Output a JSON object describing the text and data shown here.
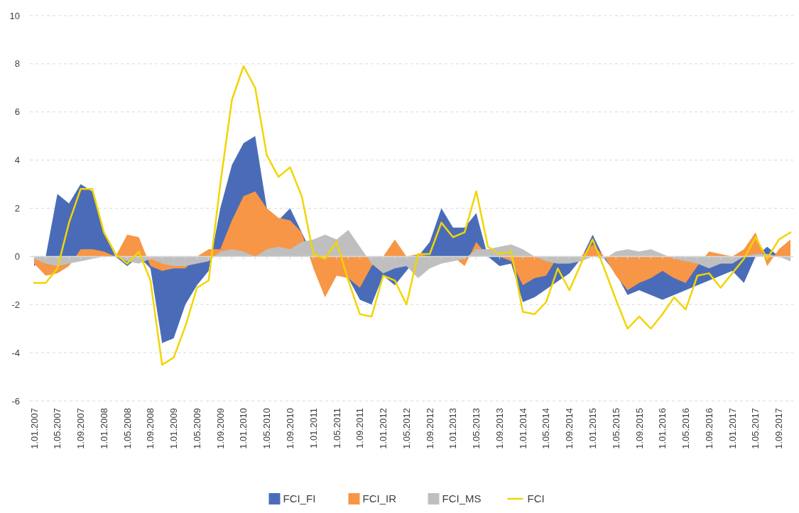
{
  "chart_data": {
    "type": "area",
    "categories": [
      "1.01.2007",
      null,
      "1.05.2007",
      null,
      "1.09.2007",
      null,
      "1.01.2008",
      null,
      "1.05.2008",
      null,
      "1.09.2008",
      null,
      "1.01.2009",
      null,
      "1.05.2009",
      null,
      "1.09.2009",
      null,
      "1.01.2010",
      null,
      "1.05.2010",
      null,
      "1.09.2010",
      null,
      "1.01.2011",
      null,
      "1.05.2011",
      null,
      "1.09.2011",
      null,
      "1.01.2012",
      null,
      "1.05.2012",
      null,
      "1.09.2012",
      null,
      "1.01.2013",
      null,
      "1.05.2013",
      null,
      "1.09.2013",
      null,
      "1.01.2014",
      null,
      "1.05.2014",
      null,
      "1.09.2014",
      null,
      "1.01.2015",
      null,
      "1.05.2015",
      null,
      "1.09.2015",
      null,
      "1.01.2016",
      null,
      "1.05.2016",
      null,
      "1.09.2016",
      null,
      "1.01.2017",
      null,
      "1.05.2017",
      null,
      "1.09.2017",
      null
    ],
    "series": [
      {
        "name": "FCI_FI",
        "color": "#4a6cb8",
        "values": [
          -0.4,
          0.0,
          2.6,
          2.2,
          3.0,
          2.7,
          1.0,
          0.0,
          -0.4,
          0.0,
          -0.5,
          -3.6,
          -3.4,
          -2.0,
          -1.2,
          -0.6,
          2.0,
          3.8,
          4.7,
          5.0,
          2.0,
          1.5,
          2.0,
          null,
          0.0,
          0.0,
          0.0,
          null,
          -1.8,
          -2.0,
          -0.8,
          -1.2,
          -0.6,
          0.0,
          0.6,
          2.0,
          1.2,
          1.2,
          1.8,
          0.0,
          -0.4,
          -0.3,
          -1.9,
          -1.7,
          null,
          null,
          -0.7,
          -0.1,
          0.9,
          -0.1,
          -0.7,
          -1.6,
          -1.4,
          -1.6,
          -1.8,
          null,
          null,
          null,
          null,
          -0.8,
          -0.6,
          -1.1,
          0.0,
          0.4,
          0.0,
          -0.1
        ]
      },
      {
        "name": "FCI_IR",
        "color": "#f79646",
        "values": [
          -0.3,
          -0.8,
          -0.7,
          -0.4,
          0.3,
          0.3,
          0.2,
          0.0,
          0.9,
          0.8,
          -0.4,
          -0.6,
          -0.5,
          -0.5,
          0.0,
          0.3,
          0.3,
          1.5,
          2.5,
          2.7,
          2.0,
          1.6,
          1.5,
          1.0,
          -0.5,
          -1.7,
          -0.8,
          -0.9,
          -1.3,
          -0.4,
          0.0,
          0.7,
          0.0,
          0.1,
          0.0,
          0.0,
          0.0,
          -0.4,
          0.6,
          0.0,
          0.0,
          -0.2,
          -1.2,
          -0.9,
          -0.8,
          0.0,
          0.0,
          0.0,
          0.5,
          0.0,
          -0.8,
          -1.4,
          -1.1,
          -0.9,
          -0.6,
          -0.9,
          -1.1,
          -0.4,
          0.2,
          0.1,
          0.0,
          0.3,
          1.0,
          -0.4,
          0.3,
          0.7
        ]
      },
      {
        "name": "FCI_MS",
        "color": "#bfbfbf",
        "values": [
          -0.1,
          -0.3,
          -0.4,
          -0.3,
          -0.2,
          -0.1,
          0.0,
          0.0,
          -0.2,
          -0.3,
          -0.1,
          -0.3,
          -0.4,
          -0.4,
          -0.3,
          -0.2,
          0.2,
          0.3,
          0.2,
          0.0,
          0.3,
          0.4,
          0.3,
          0.6,
          0.7,
          0.9,
          0.7,
          1.1,
          0.4,
          -0.3,
          -0.7,
          -0.5,
          -0.4,
          -0.9,
          -0.5,
          -0.3,
          -0.2,
          -0.1,
          0.3,
          0.3,
          0.4,
          0.5,
          0.3,
          0.0,
          -0.2,
          -0.3,
          -0.3,
          -0.2,
          0.0,
          -0.1,
          0.2,
          0.3,
          0.2,
          0.3,
          0.1,
          -0.1,
          -0.2,
          -0.3,
          -0.5,
          -0.3,
          -0.3,
          0.0,
          0.1,
          0.1,
          0.0,
          -0.2
        ]
      },
      {
        "name": "FCI",
        "type": "line",
        "color": "#f2d500",
        "values": [
          -1.1,
          -1.1,
          -0.5,
          1.4,
          2.8,
          2.8,
          1.0,
          0.1,
          -0.3,
          0.2,
          -1.0,
          -4.5,
          -4.2,
          -2.9,
          -1.3,
          -1.0,
          3.0,
          6.5,
          7.9,
          7.0,
          4.2,
          3.3,
          3.7,
          2.5,
          0.1,
          -0.1,
          0.6,
          -1.0,
          -2.4,
          -2.5,
          -0.8,
          -1.0,
          -2.0,
          0.1,
          0.1,
          1.4,
          0.8,
          1.0,
          2.7,
          0.4,
          0.1,
          0.2,
          -2.3,
          -2.4,
          -1.9,
          -0.5,
          -1.4,
          -0.3,
          0.7,
          -0.5,
          -1.8,
          -3.0,
          -2.5,
          -3.0,
          -2.4,
          -1.7,
          -2.2,
          -0.8,
          -0.7,
          -1.3,
          -0.7,
          -0.1,
          0.8,
          -0.1,
          0.7,
          1.0
        ]
      }
    ],
    "ylim": [
      -6,
      10
    ],
    "yticks": [
      -6,
      -4,
      -2,
      0,
      2,
      4,
      6,
      8,
      10
    ],
    "grid": "y",
    "legend": "bottom"
  }
}
